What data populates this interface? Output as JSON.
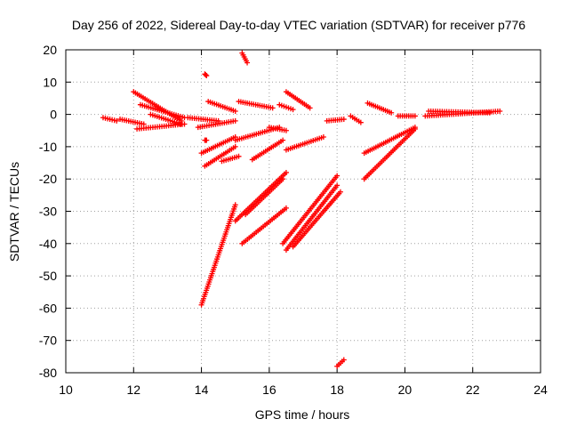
{
  "chart_data": {
    "type": "scatter",
    "title": "Day 256 of 2022, Sidereal Day-to-day VTEC variation (SDTVAR) for receiver p776",
    "xlabel": "GPS time / hours",
    "ylabel": "SDTVAR / TECUs",
    "xlim": [
      10,
      24
    ],
    "ylim": [
      -80,
      20
    ],
    "xticks": [
      "10",
      "12",
      "14",
      "16",
      "18",
      "20",
      "22",
      "24"
    ],
    "yticks": [
      "20",
      "10",
      "0",
      "-10",
      "-20",
      "-30",
      "-40",
      "-50",
      "-60",
      "-70",
      "-80"
    ],
    "grid": true,
    "marker": "+",
    "color": "#ff0000",
    "series": [
      {
        "x": [
          11.1,
          11.5
        ],
        "y": [
          -1.0,
          -2.0
        ]
      },
      {
        "x": [
          11.6,
          12.3
        ],
        "y": [
          -1.5,
          -3.0
        ]
      },
      {
        "x": [
          12.1,
          13.5
        ],
        "y": [
          -4.5,
          -3.0
        ]
      },
      {
        "x": [
          12.0,
          13.4
        ],
        "y": [
          7.0,
          -2.0
        ]
      },
      {
        "x": [
          12.2,
          13.5
        ],
        "y": [
          3.0,
          -1.0
        ]
      },
      {
        "x": [
          12.5,
          13.4
        ],
        "y": [
          0.0,
          -3.0
        ]
      },
      {
        "x": [
          13.6,
          14.5
        ],
        "y": [
          -1.0,
          -2.0
        ]
      },
      {
        "x": [
          13.9,
          15.0
        ],
        "y": [
          -4.0,
          -2.0
        ]
      },
      {
        "x": [
          14.1,
          14.15
        ],
        "y": [
          12.5,
          12.0
        ]
      },
      {
        "x": [
          14.2,
          15.0
        ],
        "y": [
          4.0,
          1.0
        ]
      },
      {
        "x": [
          15.1,
          16.1
        ],
        "y": [
          4.0,
          2.0
        ]
      },
      {
        "x": [
          15.2,
          15.35
        ],
        "y": [
          19.0,
          16.0
        ]
      },
      {
        "x": [
          16.5,
          17.2
        ],
        "y": [
          7.0,
          2.0
        ]
      },
      {
        "x": [
          16.3,
          16.7
        ],
        "y": [
          3.0,
          1.5
        ]
      },
      {
        "x": [
          14.0,
          15.0
        ],
        "y": [
          -12.0,
          -7.0
        ]
      },
      {
        "x": [
          14.1,
          14.15
        ],
        "y": [
          -8.0,
          -8.0
        ]
      },
      {
        "x": [
          14.1,
          15.0
        ],
        "y": [
          -16.0,
          -10.0
        ]
      },
      {
        "x": [
          14.6,
          15.1
        ],
        "y": [
          -14.5,
          -13.0
        ]
      },
      {
        "x": [
          15.0,
          16.3
        ],
        "y": [
          -8.0,
          -4.0
        ]
      },
      {
        "x": [
          15.5,
          16.4
        ],
        "y": [
          -14.0,
          -8.0
        ]
      },
      {
        "x": [
          16.0,
          16.5
        ],
        "y": [
          -4.0,
          -5.0
        ]
      },
      {
        "x": [
          16.5,
          17.6
        ],
        "y": [
          -11.0,
          -7.0
        ]
      },
      {
        "x": [
          14.0,
          15.0
        ],
        "y": [
          -59.0,
          -28.0
        ]
      },
      {
        "x": [
          15.0,
          16.5
        ],
        "y": [
          -33.0,
          -18.0
        ]
      },
      {
        "x": [
          15.3,
          16.4
        ],
        "y": [
          -31.0,
          -20.0
        ]
      },
      {
        "x": [
          15.2,
          16.5
        ],
        "y": [
          -40.0,
          -29.0
        ]
      },
      {
        "x": [
          16.4,
          18.0
        ],
        "y": [
          -40.0,
          -19.0
        ]
      },
      {
        "x": [
          16.5,
          18.0
        ],
        "y": [
          -42.0,
          -22.0
        ]
      },
      {
        "x": [
          16.7,
          18.1
        ],
        "y": [
          -41.0,
          -24.0
        ]
      },
      {
        "x": [
          17.7,
          18.2
        ],
        "y": [
          -2.0,
          -1.5
        ]
      },
      {
        "x": [
          18.4,
          18.7
        ],
        "y": [
          -0.5,
          -2.5
        ]
      },
      {
        "x": [
          18.9,
          19.6
        ],
        "y": [
          3.5,
          0.5
        ]
      },
      {
        "x": [
          19.8,
          20.3
        ],
        "y": [
          -0.5,
          -0.5
        ]
      },
      {
        "x": [
          18.8,
          20.3
        ],
        "y": [
          -12.0,
          -4.0
        ]
      },
      {
        "x": [
          18.8,
          20.3
        ],
        "y": [
          -20.0,
          -4.5
        ]
      },
      {
        "x": [
          20.6,
          22.8
        ],
        "y": [
          -0.5,
          1.0
        ]
      },
      {
        "x": [
          20.7,
          22.5
        ],
        "y": [
          1.0,
          0.5
        ]
      },
      {
        "x": [
          18.0,
          18.2
        ],
        "y": [
          -78.0,
          -76.0
        ]
      }
    ]
  }
}
